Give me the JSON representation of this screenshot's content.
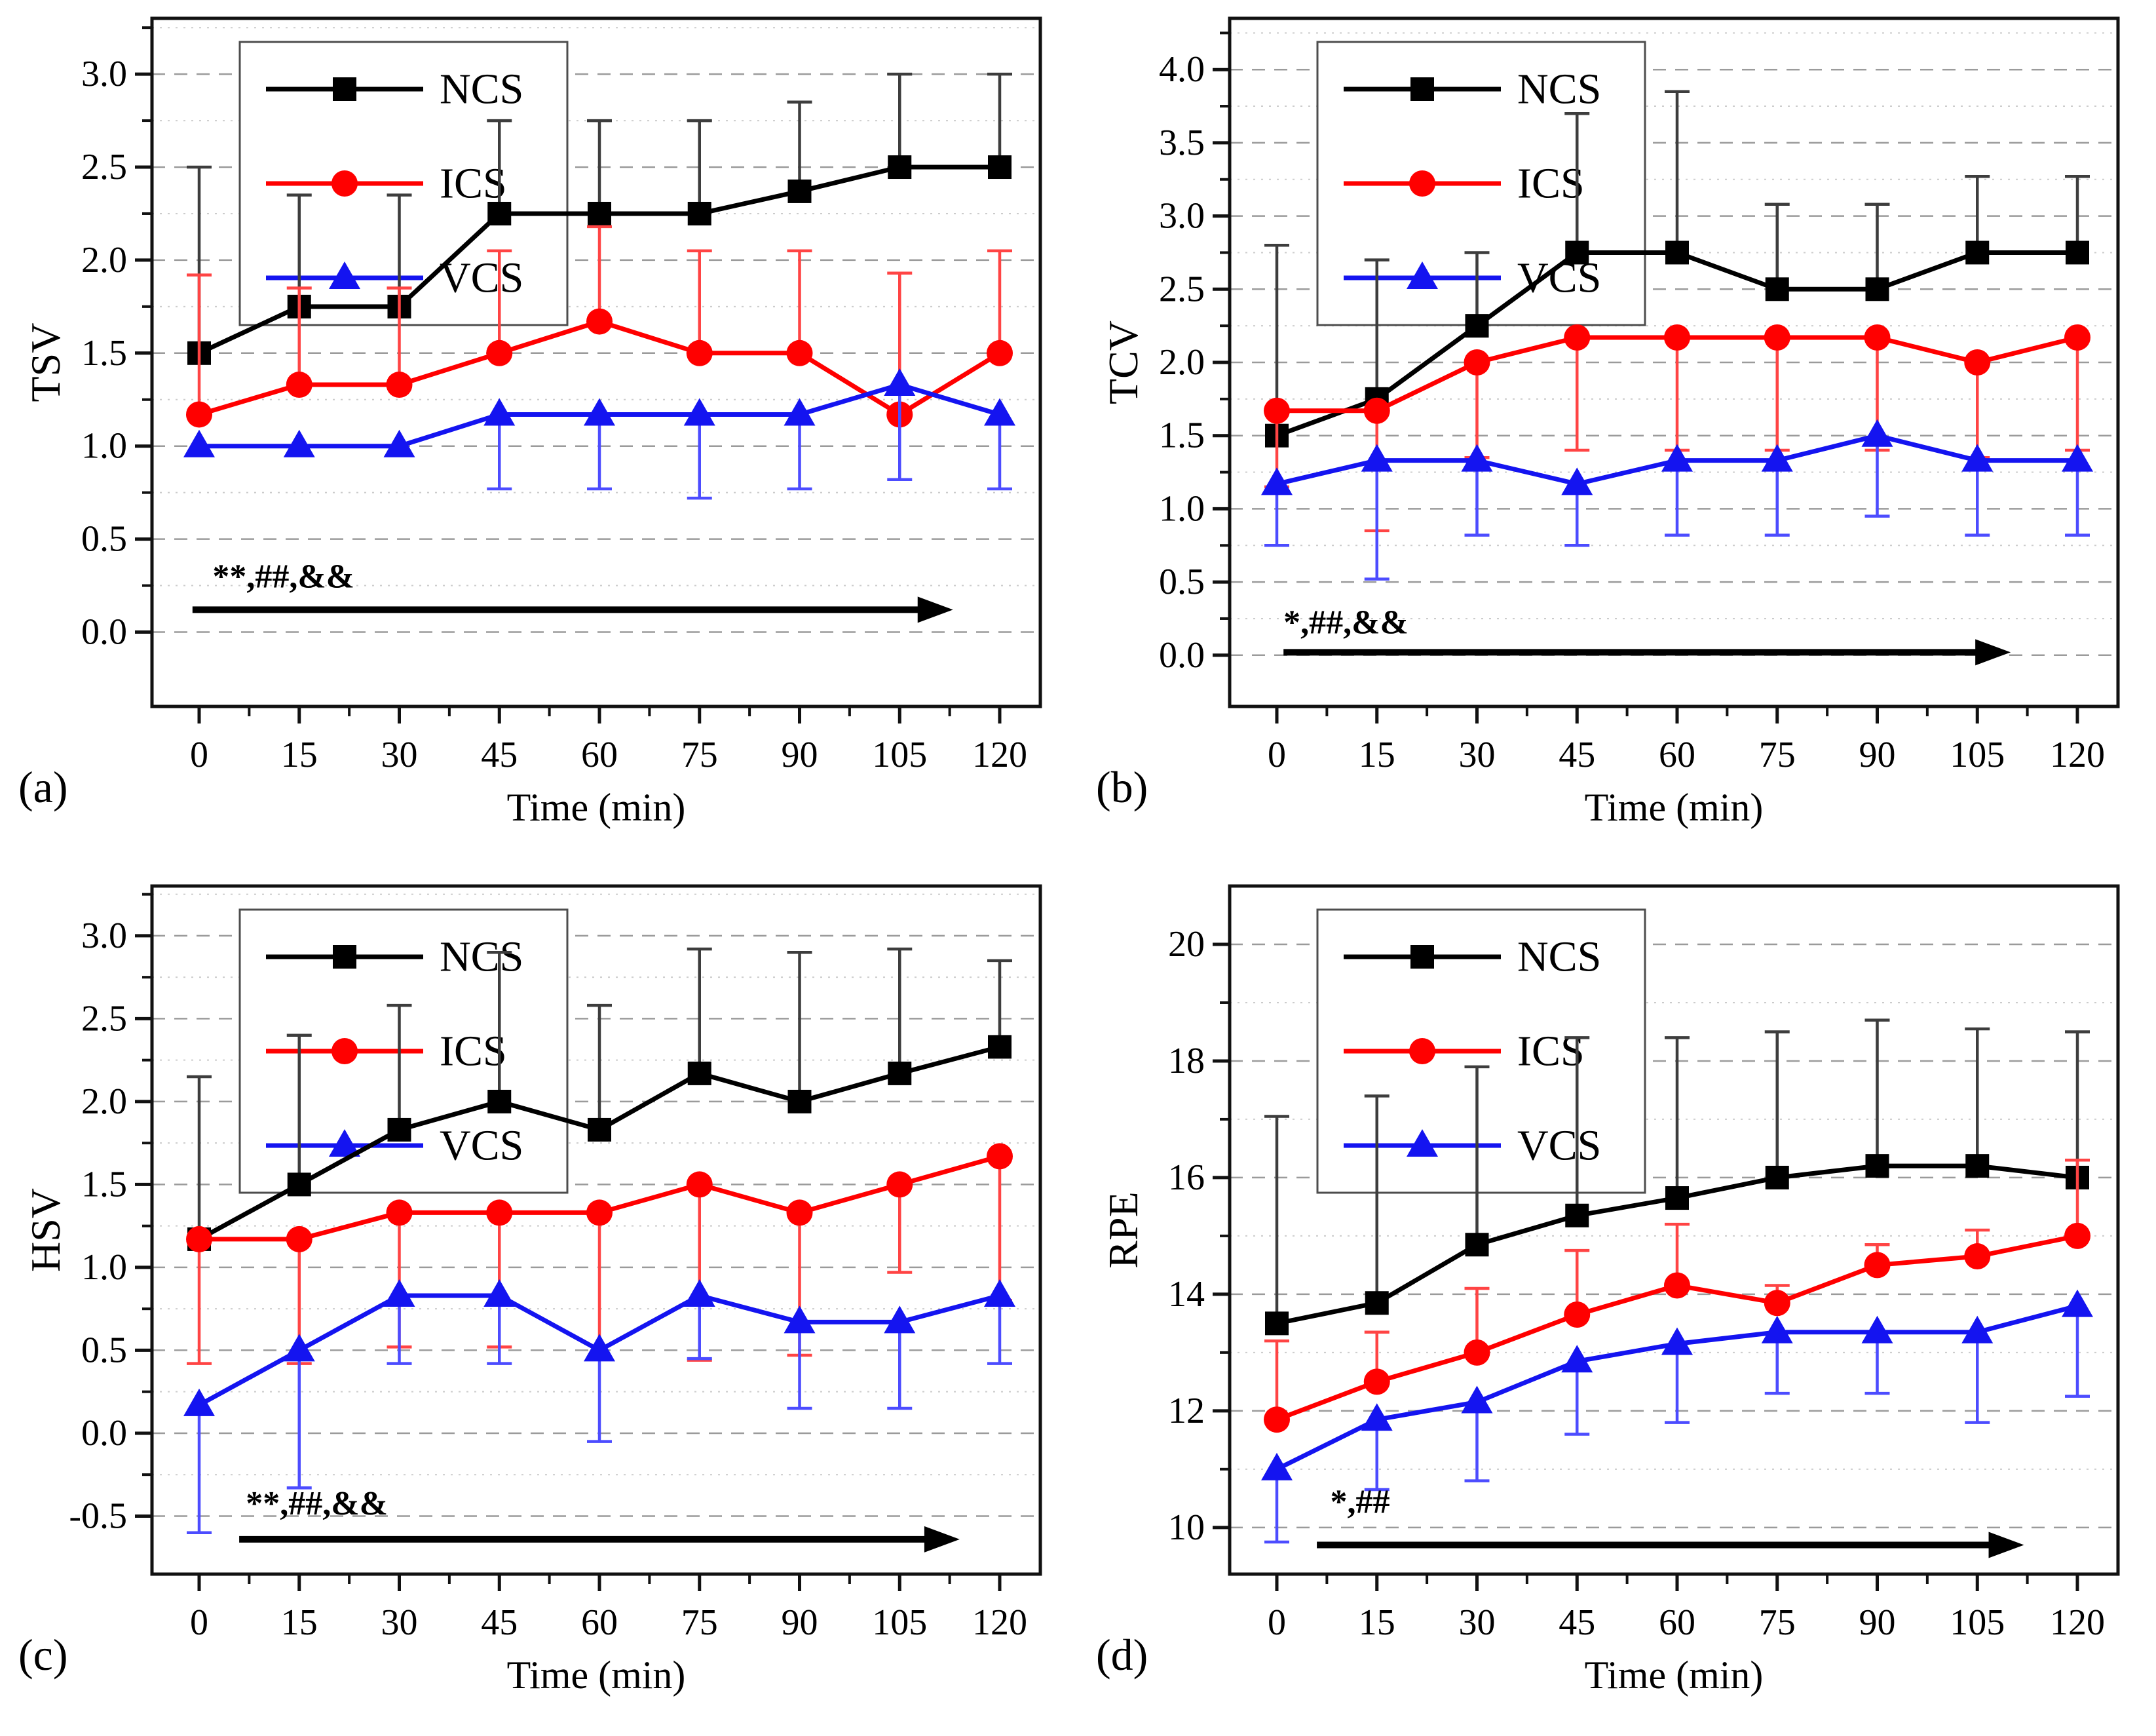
{
  "figure": {
    "background": "#ffffff",
    "legend_entries": [
      "NCS",
      "ICS",
      "VCS"
    ],
    "accent_colors": {
      "ncs": "#000000",
      "ics": "#ff0000",
      "vcs": "#1414f0"
    }
  },
  "chart_data": [
    {
      "type": "line",
      "panel_label": "(a)",
      "ylabel": "TSV",
      "xlabel": "Time (min)",
      "x": [
        0,
        15,
        30,
        45,
        60,
        75,
        90,
        105,
        120
      ],
      "xtick_labels": [
        "0",
        "15",
        "30",
        "45",
        "60",
        "75",
        "90",
        "105",
        "120"
      ],
      "ylim": [
        -0.4,
        3.3
      ],
      "yticks": [
        0.0,
        0.5,
        1.0,
        1.5,
        2.0,
        2.5,
        3.0
      ],
      "ytick_labels": [
        "0.0",
        "0.5",
        "1.0",
        "1.5",
        "2.0",
        "2.5",
        "3.0"
      ],
      "grid": true,
      "legend_position": "top-left",
      "annotation": {
        "text": "**,##,&&",
        "tx": 2,
        "ty": 0.24,
        "ax1": -1,
        "ax2": 113,
        "ay": 0.12
      },
      "series": [
        {
          "name": "NCS",
          "marker": "square",
          "color": "#000000",
          "err_color": "#3d3d3d",
          "values": [
            1.5,
            1.75,
            1.75,
            2.25,
            2.25,
            2.25,
            2.37,
            2.5,
            2.5
          ],
          "upper": [
            2.5,
            2.35,
            2.35,
            2.75,
            2.75,
            2.75,
            2.85,
            3.0,
            3.0
          ],
          "lower": [
            null,
            null,
            null,
            null,
            null,
            null,
            null,
            null,
            null
          ]
        },
        {
          "name": "ICS",
          "marker": "circle",
          "color": "#ff0000",
          "err_color": "#ff4444",
          "values": [
            1.17,
            1.33,
            1.33,
            1.5,
            1.67,
            1.5,
            1.5,
            1.17,
            1.5
          ],
          "upper": [
            1.92,
            1.85,
            1.85,
            2.05,
            2.18,
            2.05,
            2.05,
            1.93,
            2.05
          ],
          "lower": [
            null,
            null,
            null,
            null,
            null,
            null,
            null,
            null,
            null
          ]
        },
        {
          "name": "VCS",
          "marker": "triangle",
          "color": "#1414f0",
          "err_color": "#4c4cff",
          "values": [
            1.0,
            1.0,
            1.0,
            1.17,
            1.17,
            1.17,
            1.17,
            1.33,
            1.17
          ],
          "upper": [
            null,
            null,
            null,
            null,
            null,
            null,
            null,
            null,
            null
          ],
          "lower": [
            null,
            null,
            null,
            0.77,
            0.77,
            0.72,
            0.77,
            0.82,
            0.77
          ]
        }
      ]
    },
    {
      "type": "line",
      "panel_label": "(b)",
      "ylabel": "TCV",
      "xlabel": "Time (min)",
      "x": [
        0,
        15,
        30,
        45,
        60,
        75,
        90,
        105,
        120
      ],
      "xtick_labels": [
        "0",
        "15",
        "30",
        "45",
        "60",
        "75",
        "90",
        "105",
        "120"
      ],
      "ylim": [
        -0.35,
        4.35
      ],
      "yticks": [
        0.0,
        0.5,
        1.0,
        1.5,
        2.0,
        2.5,
        3.0,
        3.5,
        4.0
      ],
      "ytick_labels": [
        "0.0",
        "0.5",
        "1.0",
        "1.5",
        "2.0",
        "2.5",
        "3.0",
        "3.5",
        "4.0"
      ],
      "grid": true,
      "legend_position": "top-left",
      "annotation": {
        "text": "*,##,&&",
        "tx": 1,
        "ty": 0.15,
        "ax1": 1,
        "ax2": 110,
        "ay": 0.02
      },
      "series": [
        {
          "name": "NCS",
          "marker": "square",
          "color": "#000000",
          "err_color": "#3d3d3d",
          "values": [
            1.5,
            1.75,
            2.25,
            2.75,
            2.75,
            2.5,
            2.5,
            2.75,
            2.75
          ],
          "upper": [
            2.8,
            2.7,
            2.75,
            3.7,
            3.85,
            3.08,
            3.08,
            3.27,
            3.27
          ],
          "lower": [
            null,
            null,
            null,
            null,
            null,
            null,
            null,
            null,
            null
          ]
        },
        {
          "name": "ICS",
          "marker": "circle",
          "color": "#ff0000",
          "err_color": "#ff4444",
          "values": [
            1.67,
            1.67,
            2.0,
            2.17,
            2.17,
            2.17,
            2.17,
            2.0,
            2.17
          ],
          "upper": [
            null,
            null,
            null,
            null,
            null,
            null,
            null,
            null,
            null
          ],
          "lower": [
            1.15,
            0.85,
            1.35,
            1.4,
            1.4,
            1.4,
            1.4,
            1.35,
            1.4
          ]
        },
        {
          "name": "VCS",
          "marker": "triangle",
          "color": "#1414f0",
          "err_color": "#4c4cff",
          "values": [
            1.17,
            1.33,
            1.33,
            1.17,
            1.33,
            1.33,
            1.5,
            1.33,
            1.33
          ],
          "upper": [
            null,
            null,
            null,
            null,
            null,
            null,
            null,
            null,
            null
          ],
          "lower": [
            0.75,
            0.52,
            0.82,
            0.75,
            0.82,
            0.82,
            0.95,
            0.82,
            0.82
          ]
        }
      ]
    },
    {
      "type": "line",
      "panel_label": "(c)",
      "ylabel": "HSV",
      "xlabel": "Time (min)",
      "x": [
        0,
        15,
        30,
        45,
        60,
        75,
        90,
        105,
        120
      ],
      "xtick_labels": [
        "0",
        "15",
        "30",
        "45",
        "60",
        "75",
        "90",
        "105",
        "120"
      ],
      "ylim": [
        -0.85,
        3.3
      ],
      "yticks": [
        -0.5,
        0.0,
        0.5,
        1.0,
        1.5,
        2.0,
        2.5,
        3.0
      ],
      "ytick_labels": [
        "-0.5",
        "0.0",
        "0.5",
        "1.0",
        "1.5",
        "2.0",
        "2.5",
        "3.0"
      ],
      "grid": true,
      "legend_position": "top-left",
      "annotation": {
        "text": "**,##,&&",
        "tx": 7,
        "ty": -0.49,
        "ax1": 6,
        "ax2": 114,
        "ay": -0.64
      },
      "series": [
        {
          "name": "NCS",
          "marker": "square",
          "color": "#000000",
          "err_color": "#3d3d3d",
          "values": [
            1.17,
            1.5,
            1.83,
            2.0,
            1.83,
            2.17,
            2.0,
            2.17,
            2.33
          ],
          "upper": [
            2.15,
            2.4,
            2.58,
            2.9,
            2.58,
            2.92,
            2.9,
            2.92,
            2.85
          ],
          "lower": [
            null,
            null,
            null,
            null,
            null,
            null,
            null,
            null,
            null
          ]
        },
        {
          "name": "ICS",
          "marker": "circle",
          "color": "#ff0000",
          "err_color": "#ff4444",
          "values": [
            1.17,
            1.17,
            1.33,
            1.33,
            1.33,
            1.5,
            1.33,
            1.5,
            1.67
          ],
          "upper": [
            null,
            null,
            null,
            null,
            null,
            null,
            null,
            null,
            null
          ],
          "lower": [
            0.42,
            0.42,
            0.52,
            0.52,
            0.45,
            0.44,
            0.47,
            0.97,
            0.8
          ]
        },
        {
          "name": "VCS",
          "marker": "triangle",
          "color": "#1414f0",
          "err_color": "#4c4cff",
          "values": [
            0.17,
            0.5,
            0.83,
            0.83,
            0.5,
            0.83,
            0.67,
            0.67,
            0.83
          ],
          "upper": [
            null,
            null,
            null,
            null,
            null,
            null,
            null,
            null,
            null
          ],
          "lower": [
            -0.6,
            -0.33,
            0.42,
            0.42,
            -0.05,
            0.45,
            0.15,
            0.15,
            0.42
          ]
        }
      ]
    },
    {
      "type": "line",
      "panel_label": "(d)",
      "ylabel": "RPE",
      "xlabel": "Time (min)",
      "x": [
        0,
        15,
        30,
        45,
        60,
        75,
        90,
        105,
        120
      ],
      "xtick_labels": [
        "0",
        "15",
        "30",
        "45",
        "60",
        "75",
        "90",
        "105",
        "120"
      ],
      "ylim": [
        9.2,
        21.0
      ],
      "yticks": [
        10,
        12,
        14,
        16,
        18,
        20
      ],
      "ytick_labels": [
        "10",
        "12",
        "14",
        "16",
        "18",
        "20"
      ],
      "grid": true,
      "legend_position": "top-left",
      "annotation": {
        "text": "*,##",
        "tx": 8,
        "ty": 10.25,
        "ax1": 6,
        "ax2": 112,
        "ay": 9.7
      },
      "series": [
        {
          "name": "NCS",
          "marker": "square",
          "color": "#000000",
          "err_color": "#3d3d3d",
          "values": [
            13.5,
            13.85,
            14.85,
            15.35,
            15.65,
            16.0,
            16.2,
            16.2,
            16.0
          ],
          "upper": [
            17.05,
            17.4,
            17.9,
            18.4,
            18.4,
            18.5,
            18.7,
            18.55,
            18.5
          ],
          "lower": [
            null,
            null,
            null,
            null,
            null,
            null,
            null,
            null,
            null
          ]
        },
        {
          "name": "ICS",
          "marker": "circle",
          "color": "#ff0000",
          "err_color": "#ff4444",
          "values": [
            11.85,
            12.5,
            13.0,
            13.65,
            14.15,
            13.85,
            14.5,
            14.65,
            15.0
          ],
          "upper": [
            13.2,
            13.35,
            14.1,
            14.75,
            15.2,
            14.15,
            14.85,
            15.1,
            16.3
          ],
          "lower": [
            null,
            null,
            null,
            null,
            null,
            null,
            null,
            null,
            null
          ]
        },
        {
          "name": "VCS",
          "marker": "triangle",
          "color": "#1414f0",
          "err_color": "#4c4cff",
          "values": [
            11.0,
            11.85,
            12.15,
            12.85,
            13.15,
            13.35,
            13.35,
            13.35,
            13.8
          ],
          "upper": [
            null,
            null,
            null,
            null,
            null,
            null,
            null,
            null,
            null
          ],
          "lower": [
            9.75,
            10.65,
            10.8,
            11.6,
            11.8,
            12.3,
            12.3,
            11.8,
            12.25
          ]
        }
      ]
    }
  ]
}
